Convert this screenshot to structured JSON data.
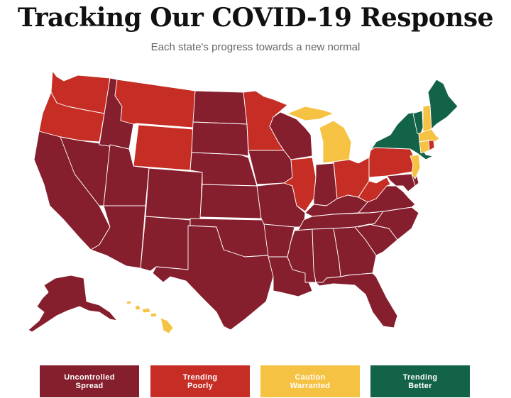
{
  "header": {
    "title": "Tracking Our COVID-19 Response",
    "subtitle": "Each state's progress towards a new normal"
  },
  "colors": {
    "uncontrolled": "#861f2d",
    "trending_poorly": "#c62d25",
    "caution": "#f6c244",
    "trending_better": "#136348"
  },
  "legend": [
    {
      "line1": "Uncontrolled",
      "line2": "Spread",
      "color": "#861f2d"
    },
    {
      "line1": "Trending",
      "line2": "Poorly",
      "color": "#c62d25"
    },
    {
      "line1": "Caution",
      "line2": "Warranted",
      "color": "#f6c244"
    },
    {
      "line1": "Trending",
      "line2": "Better",
      "color": "#136348"
    }
  ],
  "states": {
    "WA": "trending_poorly",
    "OR": "trending_poorly",
    "CA": "uncontrolled",
    "NV": "uncontrolled",
    "ID": "uncontrolled",
    "MT": "trending_poorly",
    "WY": "trending_poorly",
    "UT": "uncontrolled",
    "AZ": "uncontrolled",
    "CO": "uncontrolled",
    "NM": "uncontrolled",
    "ND": "uncontrolled",
    "SD": "uncontrolled",
    "NE": "uncontrolled",
    "KS": "uncontrolled",
    "OK": "uncontrolled",
    "TX": "uncontrolled",
    "MN": "trending_poorly",
    "IA": "uncontrolled",
    "MO": "uncontrolled",
    "AR": "uncontrolled",
    "LA": "uncontrolled",
    "WI": "uncontrolled",
    "IL": "trending_poorly",
    "MI": "caution",
    "IN": "uncontrolled",
    "OH": "trending_poorly",
    "KY": "uncontrolled",
    "TN": "uncontrolled",
    "MS": "uncontrolled",
    "AL": "uncontrolled",
    "GA": "uncontrolled",
    "FL": "uncontrolled",
    "SC": "uncontrolled",
    "NC": "uncontrolled",
    "VA": "uncontrolled",
    "WV": "trending_poorly",
    "MD": "uncontrolled",
    "DE": "uncontrolled",
    "PA": "trending_poorly",
    "NJ": "caution",
    "NY": "trending_better",
    "CT": "caution",
    "RI": "trending_poorly",
    "MA": "caution",
    "VT": "trending_better",
    "NH": "caution",
    "ME": "trending_better",
    "AK": "uncontrolled",
    "HI": "caution"
  }
}
